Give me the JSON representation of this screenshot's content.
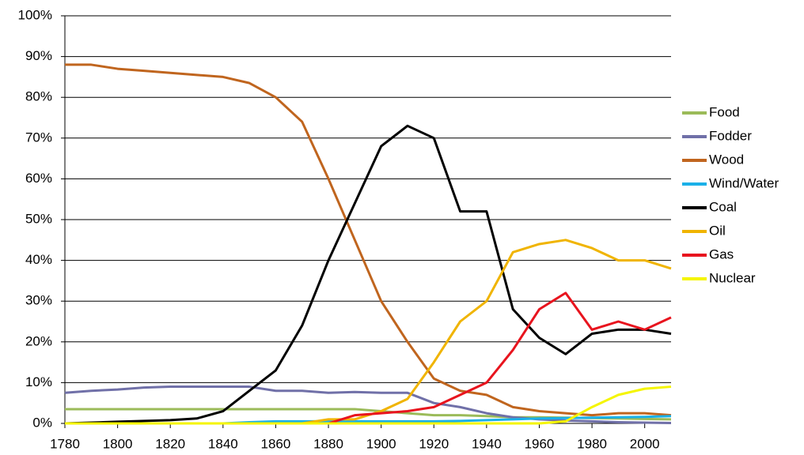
{
  "chart_data": {
    "type": "line",
    "x": [
      1780,
      1790,
      1800,
      1810,
      1820,
      1830,
      1840,
      1850,
      1860,
      1870,
      1880,
      1890,
      1900,
      1910,
      1920,
      1930,
      1940,
      1950,
      1960,
      1970,
      1980,
      1990,
      2000,
      2010
    ],
    "series": [
      {
        "name": "Food",
        "color": "#9bbb59",
        "values": [
          3.5,
          3.5,
          3.5,
          3.5,
          3.5,
          3.5,
          3.5,
          3.5,
          3.5,
          3.5,
          3.5,
          3.5,
          3,
          2.5,
          2,
          2,
          1.8,
          1.5,
          1.5,
          1.4,
          1.3,
          1.2,
          1.1,
          1
        ]
      },
      {
        "name": "Fodder",
        "color": "#7070a8",
        "values": [
          7.5,
          8,
          8.3,
          8.8,
          9,
          9,
          9,
          9,
          8,
          8,
          7.5,
          7.7,
          7.5,
          7.5,
          5,
          4,
          2.5,
          1.5,
          1,
          0.7,
          0.5,
          0.3,
          0.2,
          0.1
        ]
      },
      {
        "name": "Wood",
        "color": "#c0651e",
        "values": [
          88,
          88,
          87,
          86.5,
          86,
          85.5,
          85,
          83.5,
          80,
          74,
          60,
          45,
          30,
          20,
          11,
          8,
          7,
          4,
          3,
          2.5,
          2,
          2.5,
          2.5,
          2
        ]
      },
      {
        "name": "Wind/Water",
        "color": "#1ab0e8",
        "values": [
          0,
          0,
          0,
          0,
          0,
          0,
          0,
          0.3,
          0.5,
          0.5,
          0.5,
          0.5,
          0.5,
          0.5,
          0.5,
          0.6,
          0.8,
          1,
          1.2,
          1.3,
          1.4,
          1.5,
          1.6,
          1.8
        ]
      },
      {
        "name": "Coal",
        "color": "#000000",
        "values": [
          0,
          0.2,
          0.4,
          0.6,
          0.8,
          1.2,
          3,
          8,
          13,
          24,
          40,
          54,
          68,
          73,
          70,
          52,
          52,
          28,
          21,
          17,
          22,
          23,
          23,
          22
        ]
      },
      {
        "name": "Oil",
        "color": "#f0b400",
        "values": [
          0,
          0,
          0,
          0,
          0,
          0,
          0,
          0,
          0,
          0,
          1,
          1,
          3,
          6,
          15,
          25,
          30,
          42,
          44,
          45,
          43,
          40,
          40,
          38
        ]
      },
      {
        "name": "Gas",
        "color": "#e8141e",
        "values": [
          0,
          0,
          0,
          0,
          0,
          0,
          0,
          0,
          0,
          0,
          0,
          2,
          2.5,
          3,
          4,
          7,
          10,
          18,
          28,
          32,
          23,
          25,
          23,
          26
        ]
      },
      {
        "name": "Nuclear",
        "color": "#f5f500",
        "values": [
          0,
          0,
          0,
          0,
          0,
          0,
          0,
          0,
          0,
          0,
          0,
          0,
          0,
          0,
          0,
          0,
          0,
          0,
          0,
          0.5,
          4,
          7,
          8.5,
          9
        ]
      }
    ],
    "xlim": [
      1780,
      2010
    ],
    "xticks": [
      1780,
      1800,
      1820,
      1840,
      1860,
      1880,
      1900,
      1920,
      1940,
      1960,
      1980,
      2000
    ],
    "ylim": [
      0,
      100
    ],
    "yticks": [
      {
        "value": 0,
        "label": "0%"
      },
      {
        "value": 10,
        "label": "10%"
      },
      {
        "value": 20,
        "label": "20%"
      },
      {
        "value": 30,
        "label": "30%"
      },
      {
        "value": 40,
        "label": "40%"
      },
      {
        "value": 50,
        "label": "50%"
      },
      {
        "value": 60,
        "label": "60%"
      },
      {
        "value": 70,
        "label": "70%"
      },
      {
        "value": 80,
        "label": "80%"
      },
      {
        "value": 90,
        "label": "90%"
      },
      {
        "value": 100,
        "label": "100%"
      }
    ],
    "grid": true,
    "legend": "right"
  }
}
